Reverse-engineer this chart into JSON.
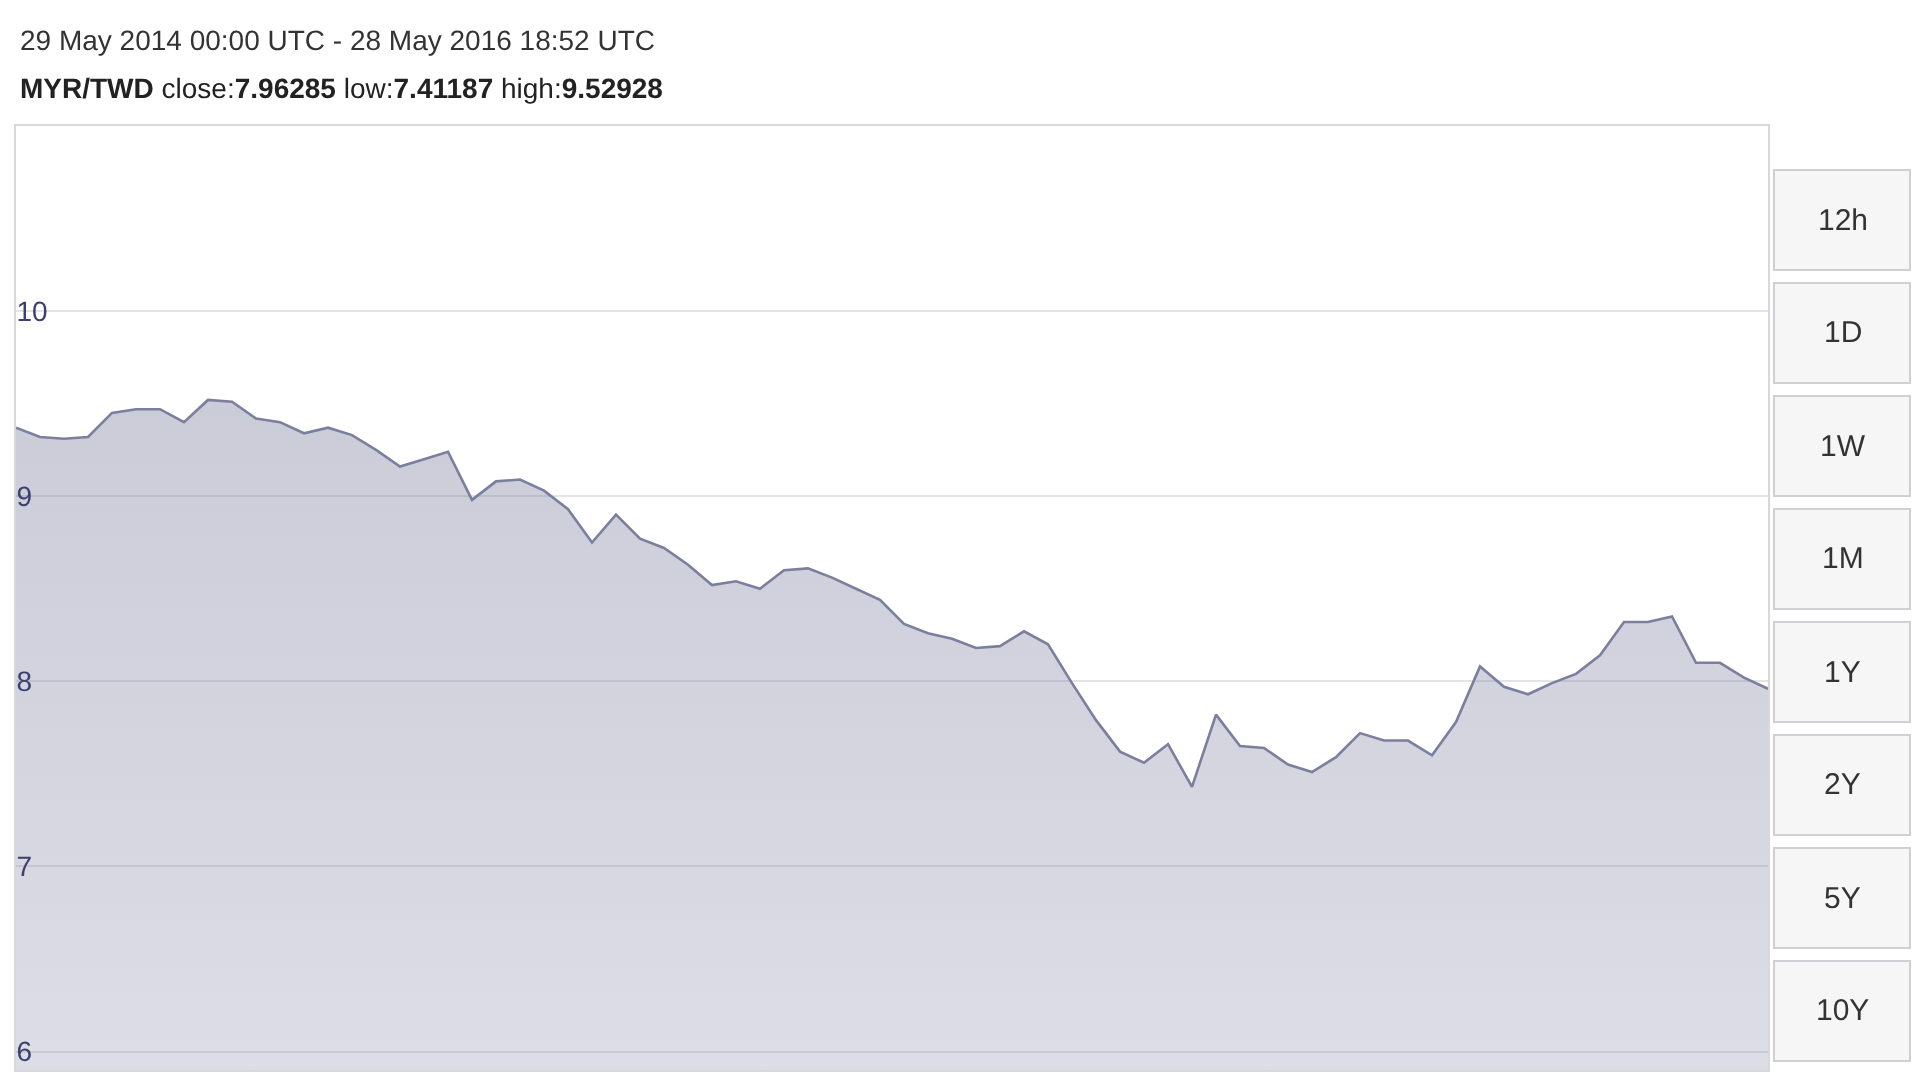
{
  "chart_data": {
    "type": "area",
    "title": "29 May 2014 00:00 UTC - 28 May 2016 18:52 UTC",
    "subtitle": "MYR/TWD close:7.96285 low:7.41187 high:9.52928",
    "annotations": [
      "12h",
      "1D",
      "1W",
      "1M",
      "1Y",
      "2Y",
      "5Y",
      "10Y"
    ],
    "categories": [
      null,
      null,
      null,
      null,
      null,
      null,
      null,
      null,
      null,
      null,
      null,
      null,
      null,
      null,
      null,
      null,
      null,
      null,
      null,
      null,
      null,
      null,
      null,
      null,
      null,
      null,
      null,
      null,
      null,
      null,
      null,
      null,
      null,
      null,
      null,
      null,
      null,
      null,
      null,
      null,
      null,
      null,
      null,
      null,
      null,
      null,
      null,
      null,
      null,
      null,
      null,
      null,
      null,
      null,
      null,
      null,
      null,
      null,
      null,
      null,
      null,
      null,
      null,
      null,
      null,
      null,
      null,
      null,
      null,
      null,
      null,
      null,
      null,
      null
    ],
    "series": [
      {
        "color": "#7b7f9e",
        "values": [
          9.37,
          9.32,
          9.31,
          9.32,
          9.45,
          9.47,
          9.47,
          9.4,
          9.52,
          9.51,
          9.42,
          9.4,
          9.34,
          9.37,
          9.33,
          9.25,
          9.16,
          9.2,
          9.24,
          8.98,
          9.08,
          9.09,
          9.03,
          8.93,
          8.75,
          8.9,
          8.77,
          8.72,
          8.63,
          8.52,
          8.54,
          8.5,
          8.6,
          8.61,
          8.56,
          8.5,
          8.44,
          8.31,
          8.26,
          8.23,
          8.18,
          8.19,
          8.27,
          8.2,
          7.99,
          7.79,
          7.62,
          7.56,
          7.66,
          7.43,
          7.82,
          7.65,
          7.64,
          7.55,
          7.51,
          7.59,
          7.72,
          7.68,
          7.68,
          7.6,
          7.78,
          8.08,
          7.97,
          7.93,
          7.99,
          8.04,
          8.14,
          8.32,
          8.32,
          8.35,
          8.1,
          8.1,
          8.02,
          7.96
        ]
      }
    ],
    "ylim": [
      5.9,
      11
    ],
    "yticks": [
      6,
      7,
      8,
      9,
      10
    ],
    "tick_labels": "y",
    "grid": "y"
  }
}
